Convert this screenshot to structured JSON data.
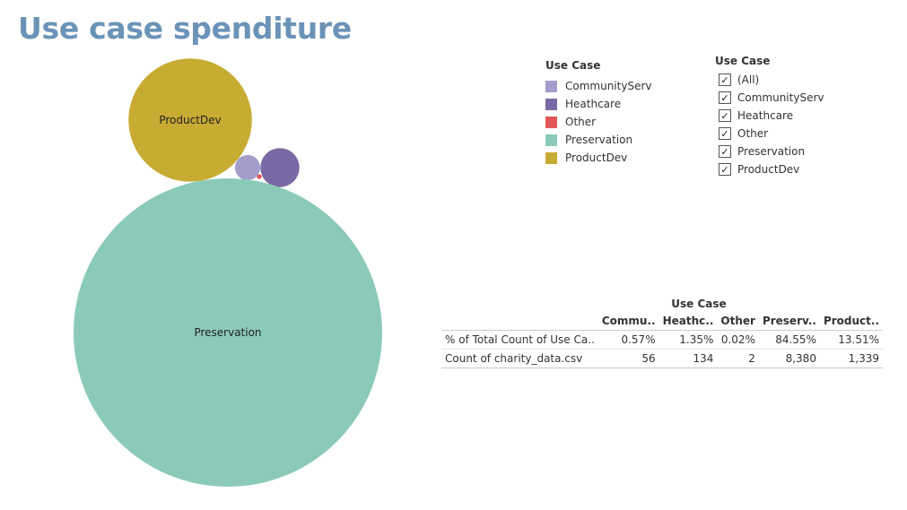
{
  "title": "Use case spenditure",
  "legend": {
    "title": "Use Case",
    "items": [
      {
        "label": "CommunityServ",
        "color": "#a29dcb"
      },
      {
        "label": "Heathcare",
        "color": "#7a69a4"
      },
      {
        "label": "Other",
        "color": "#e15759"
      },
      {
        "label": "Preservation",
        "color": "#8bcab9"
      },
      {
        "label": "ProductDev",
        "color": "#c7ab32"
      }
    ]
  },
  "filter": {
    "title": "Use Case",
    "check_glyph": "✓",
    "items": [
      {
        "label": "(All)",
        "checked": true
      },
      {
        "label": "CommunityServ",
        "checked": true
      },
      {
        "label": "Heathcare",
        "checked": true
      },
      {
        "label": "Other",
        "checked": true
      },
      {
        "label": "Preservation",
        "checked": true
      },
      {
        "label": "ProductDev",
        "checked": true
      }
    ]
  },
  "table": {
    "column_header": "Use Case",
    "columns": [
      "Commu..",
      "Heathc..",
      "Other",
      "Preserv..",
      "Product.."
    ],
    "rows": [
      {
        "label": "% of Total Count of Use Ca..",
        "values": [
          "0.57%",
          "1.35%",
          "0.02%",
          "84.55%",
          "13.51%"
        ]
      },
      {
        "label": "Count of charity_data.csv",
        "values": [
          "56",
          "134",
          "2",
          "8,380",
          "1,339"
        ]
      }
    ]
  },
  "chart_data": {
    "type": "bubble",
    "title": "Use case spenditure",
    "series": [
      {
        "name": "CommunityServ",
        "value": 56,
        "color": "#a29dcb",
        "show_label": false
      },
      {
        "name": "Heathcare",
        "value": 134,
        "color": "#7a69a4",
        "show_label": false
      },
      {
        "name": "Other",
        "value": 2,
        "color": "#e15759",
        "show_label": false
      },
      {
        "name": "Preservation",
        "value": 8380,
        "color": "#8bcab9",
        "show_label": true
      },
      {
        "name": "ProductDev",
        "value": 1339,
        "color": "#c7ab32",
        "show_label": true
      }
    ]
  }
}
